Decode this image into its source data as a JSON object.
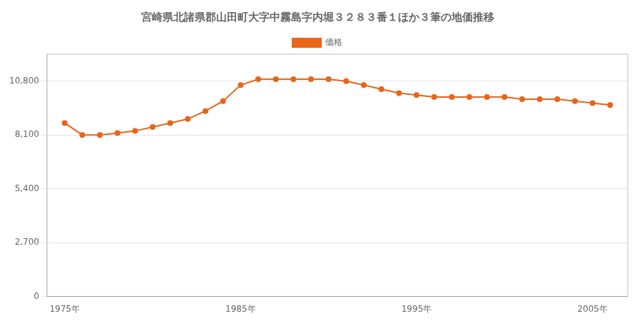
{
  "chart_data": {
    "type": "line",
    "title": "宮崎県北諸県郡山田町大字中霧島字内堀３２８３番１ほか３筆の地価推移",
    "x": [
      1975,
      1976,
      1977,
      1978,
      1979,
      1980,
      1981,
      1982,
      1983,
      1984,
      1985,
      1986,
      1987,
      1988,
      1989,
      1990,
      1991,
      1992,
      1993,
      1994,
      1995,
      1996,
      1997,
      1998,
      1999,
      2000,
      2001,
      2002,
      2003,
      2004,
      2005,
      2006
    ],
    "series": [
      {
        "name": "価格",
        "color": "#e8651a",
        "marker": "circle",
        "values": [
          8700,
          8100,
          8100,
          8200,
          8300,
          8500,
          8700,
          8900,
          9300,
          9800,
          10600,
          10900,
          10900,
          10900,
          10900,
          10900,
          10800,
          10600,
          10400,
          10200,
          10100,
          10000,
          10000,
          10000,
          10000,
          10000,
          9900,
          9900,
          9900,
          9800,
          9700,
          9600
        ]
      }
    ],
    "xlim": [
      1974,
      2007
    ],
    "xticks": [
      {
        "value": 1975,
        "label": "1975年"
      },
      {
        "value": 1985,
        "label": "1985年"
      },
      {
        "value": 1995,
        "label": "1995年"
      },
      {
        "value": 2005,
        "label": "2005年"
      }
    ],
    "ylim": [
      0,
      12150
    ],
    "yticks": [
      0,
      {
        "value": 2700,
        "label": "2,700"
      },
      {
        "value": 5400,
        "label": "5,400"
      },
      {
        "value": 8100,
        "label": "8,100"
      },
      {
        "value": 10800,
        "label": "10,800"
      }
    ],
    "grid": "y",
    "legend": "top"
  }
}
